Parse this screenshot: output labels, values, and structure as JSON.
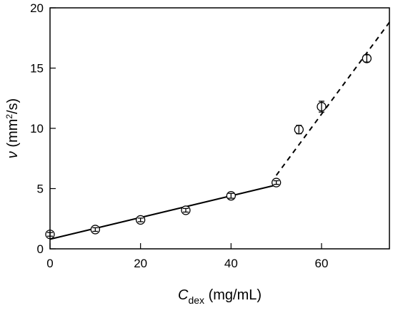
{
  "chart_data": {
    "type": "scatter",
    "xlabel": {
      "main": "C",
      "sub": "dex",
      "units": " (mg/mL)"
    },
    "ylabel": {
      "main": "ν",
      "units": " (mm",
      "sup": "2",
      "units_end": "/s)"
    },
    "xlim": [
      0,
      75
    ],
    "ylim": [
      0,
      20
    ],
    "xticks": [
      0,
      20,
      40,
      60
    ],
    "yticks": [
      0,
      5,
      10,
      15,
      20
    ],
    "grid": false,
    "series": [
      {
        "marker": "open-circle",
        "x": [
          0,
          10,
          20,
          30,
          40,
          50,
          55,
          60,
          70
        ],
        "y": [
          1.2,
          1.6,
          2.4,
          3.2,
          4.4,
          5.5,
          9.9,
          11.8,
          15.8
        ],
        "yerr": [
          0.15,
          0.15,
          0.15,
          0.15,
          0.2,
          0.15,
          0.35,
          0.45,
          0.3
        ]
      }
    ],
    "fits": [
      {
        "style": "solid",
        "x": [
          0,
          50
        ],
        "y": [
          0.8,
          5.3
        ]
      },
      {
        "style": "dashed",
        "x": [
          50,
          75
        ],
        "y": [
          6.1,
          18.8
        ]
      }
    ]
  }
}
